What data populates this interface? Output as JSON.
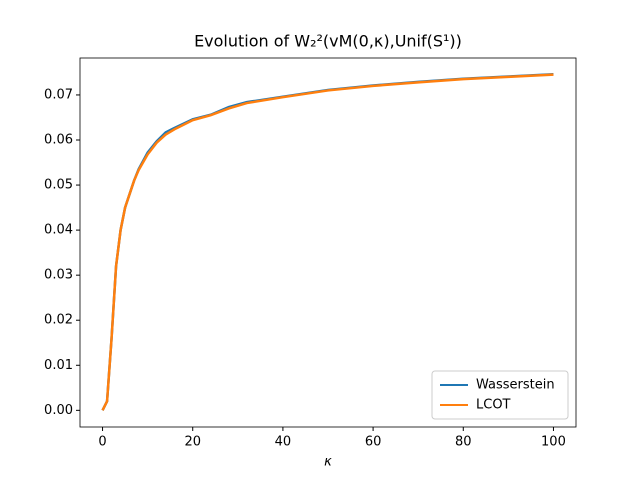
{
  "chart_data": {
    "type": "line",
    "title": "Evolution of W₂²(vM(0,κ),Unif(S¹))",
    "x_label": "κ",
    "x": [
      0,
      1,
      2,
      3,
      4,
      5,
      6,
      7,
      8,
      10,
      12,
      14,
      16,
      20,
      24,
      28,
      32,
      40,
      50,
      60,
      70,
      80,
      90,
      100
    ],
    "series": [
      {
        "name": "Wasserstein",
        "color": "#1f77b4",
        "values": [
          0,
          0.002,
          0.016,
          0.032,
          0.04,
          0.045,
          0.048,
          0.051,
          0.0535,
          0.0572,
          0.0597,
          0.0617,
          0.0627,
          0.0646,
          0.0656,
          0.0673,
          0.0684,
          0.0696,
          0.0711,
          0.0721,
          0.0729,
          0.0736,
          0.0741,
          0.0746
        ]
      },
      {
        "name": "LCOT",
        "color": "#ff7f0e",
        "values": [
          0,
          0.002,
          0.016,
          0.032,
          0.04,
          0.045,
          0.048,
          0.051,
          0.0533,
          0.0568,
          0.0594,
          0.0612,
          0.0624,
          0.0644,
          0.0655,
          0.067,
          0.0682,
          0.0695,
          0.071,
          0.072,
          0.0728,
          0.0735,
          0.074,
          0.0745
        ]
      }
    ],
    "xlim": [
      -5,
      105
    ],
    "xticks": [
      0,
      20,
      40,
      60,
      80,
      100
    ],
    "ylim": [
      -0.0037,
      0.0782
    ],
    "yticks": [
      {
        "value": 0,
        "label": "0.00"
      },
      {
        "value": 0.01,
        "label": "0.01"
      },
      {
        "value": 0.02,
        "label": "0.02"
      },
      {
        "value": 0.03,
        "label": "0.03"
      },
      {
        "value": 0.04,
        "label": "0.04"
      },
      {
        "value": 0.05,
        "label": "0.05"
      },
      {
        "value": 0.06,
        "label": "0.06"
      },
      {
        "value": 0.07,
        "label": "0.07"
      }
    ],
    "legend": "lower right"
  }
}
